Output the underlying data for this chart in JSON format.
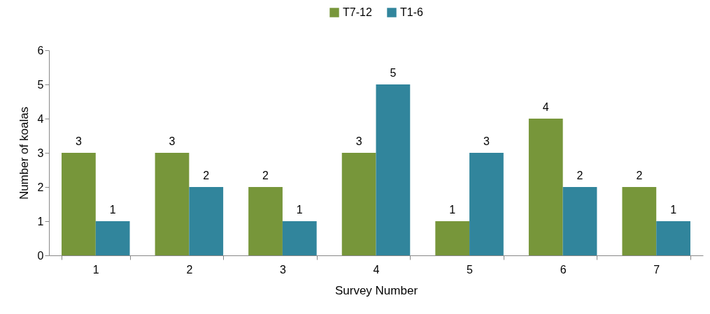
{
  "chart_data": {
    "type": "bar",
    "xlabel": "Survey Number",
    "ylabel": "Number of koalas",
    "categories": [
      "1",
      "2",
      "3",
      "4",
      "5",
      "6",
      "7"
    ],
    "series": [
      {
        "name": "T7-12",
        "color": "#77963a",
        "values": [
          3,
          3,
          2,
          3,
          1,
          4,
          2
        ]
      },
      {
        "name": "T1-6",
        "color": "#31859c",
        "values": [
          1,
          2,
          1,
          5,
          3,
          2,
          1
        ]
      }
    ],
    "ylim": [
      0,
      6
    ],
    "yticks": [
      0,
      1,
      2,
      3,
      4,
      5,
      6
    ],
    "grid": false,
    "legend": "top",
    "data_labels": true
  }
}
